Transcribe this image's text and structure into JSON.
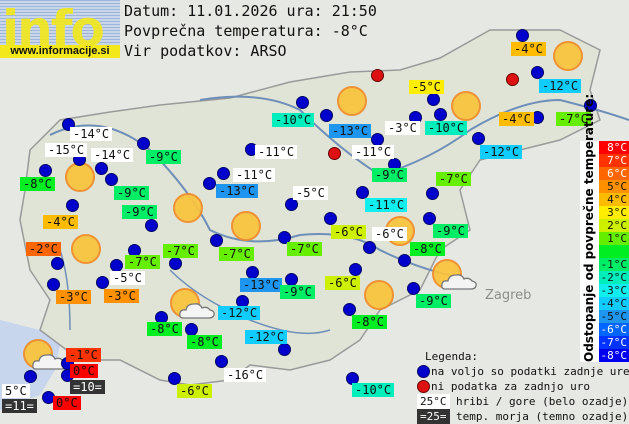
{
  "logo": {
    "word": "info",
    "url": "www.informacije.si"
  },
  "header": {
    "date_line": "Datum: 11.01.2026 ura: 21:50",
    "avg_line": "Povprečna temperatura: -8°C",
    "source_line": "Vir podatkov: ARSO"
  },
  "place_names": {
    "zagreb": "Zagreb"
  },
  "stations": [
    {
      "t": "-14°C",
      "bg": "#ffffff"
    },
    {
      "t": "-15°C",
      "bg": "#ffffff"
    },
    {
      "t": "-14°C",
      "bg": "#ffffff"
    },
    {
      "t": "-8°C",
      "bg": "#00ee22"
    },
    {
      "t": "-9°C",
      "bg": "#00ee66"
    },
    {
      "t": "-9°C",
      "bg": "#00ee66"
    },
    {
      "t": "-9°C",
      "bg": "#00ee66"
    },
    {
      "t": "-4°C",
      "bg": "#ffbb00"
    },
    {
      "t": "-2°C",
      "bg": "#ff6600"
    },
    {
      "t": "-10°C",
      "bg": "#00eebb"
    },
    {
      "t": "-13°C",
      "bg": "#1e96f0"
    },
    {
      "t": "-3°C",
      "bg": "#ffffff"
    },
    {
      "t": "-10°C",
      "bg": "#00eebb"
    },
    {
      "t": "-11°C",
      "bg": "#ffffff"
    },
    {
      "t": "-11°C",
      "bg": "#ffffff"
    },
    {
      "t": "-5°C",
      "bg": "#ffee00"
    },
    {
      "t": "-4°C",
      "bg": "#ffbb00"
    },
    {
      "t": "-12°C",
      "bg": "#11ccff"
    },
    {
      "t": "-4°C",
      "bg": "#ffbb00"
    },
    {
      "t": "-7°C",
      "bg": "#66ee00"
    },
    {
      "t": "-12°C",
      "bg": "#11ccff"
    },
    {
      "t": "-11°C",
      "bg": "#ffffff"
    },
    {
      "t": "-13°C",
      "bg": "#1e96f0"
    },
    {
      "t": "-5°C",
      "bg": "#ffffff"
    },
    {
      "t": "-9°C",
      "bg": "#00ee66"
    },
    {
      "t": "-7°C",
      "bg": "#66ee00"
    },
    {
      "t": "-11°C",
      "bg": "#11eeee"
    },
    {
      "t": "-6°C",
      "bg": "#ccf000"
    },
    {
      "t": "-6°C",
      "bg": "#ffffff"
    },
    {
      "t": "-9°C",
      "bg": "#00ee66"
    },
    {
      "t": "-8°C",
      "bg": "#00ee22"
    },
    {
      "t": "-7°C",
      "bg": "#66ee00"
    },
    {
      "t": "-7°C",
      "bg": "#66ee00"
    },
    {
      "t": "-7°C",
      "bg": "#66ee00"
    },
    {
      "t": "-7°C",
      "bg": "#66ee00"
    },
    {
      "t": "-5°C",
      "bg": "#ffffff"
    },
    {
      "t": "-3°C",
      "bg": "#ff9100"
    },
    {
      "t": "-3°C",
      "bg": "#ff9100"
    },
    {
      "t": "-13°C",
      "bg": "#1e96f0"
    },
    {
      "t": "-9°C",
      "bg": "#00ee66"
    },
    {
      "t": "-6°C",
      "bg": "#ccf000"
    },
    {
      "t": "-9°C",
      "bg": "#00ee66"
    },
    {
      "t": "-12°C",
      "bg": "#11ccff"
    },
    {
      "t": "-8°C",
      "bg": "#00ee22"
    },
    {
      "t": "-8°C",
      "bg": "#00ee22"
    },
    {
      "t": "-12°C",
      "bg": "#11ccff"
    },
    {
      "t": "-8°C",
      "bg": "#00ee22"
    },
    {
      "t": "-1°C",
      "bg": "#ff3300"
    },
    {
      "t": "0°C",
      "bg": "#ff0000"
    },
    {
      "t": "=10=",
      "bg": "#333333"
    },
    {
      "t": "5°C",
      "bg": "#ffffff"
    },
    {
      "t": "=11=",
      "bg": "#333333"
    },
    {
      "t": "0°C",
      "bg": "#ff0000"
    },
    {
      "t": "-16°C",
      "bg": "#ffffff"
    },
    {
      "t": "-6°C",
      "bg": "#ccf000"
    },
    {
      "t": "-10°C",
      "bg": "#00eebb"
    }
  ],
  "scale": {
    "title": "Odstopanje od povprečne temperature:",
    "steps": [
      {
        "label": "8°C",
        "color": "#ff0000",
        "text": "#ffffff"
      },
      {
        "label": "7°C",
        "color": "#ff3300",
        "text": "#ffffff"
      },
      {
        "label": "6°C",
        "color": "#ff6600",
        "text": "#ffffff"
      },
      {
        "label": "5°C",
        "color": "#ff9100",
        "text": "#111111"
      },
      {
        "label": "4°C",
        "color": "#ffbb00",
        "text": "#111111"
      },
      {
        "label": "3°C",
        "color": "#ffee00",
        "text": "#111111"
      },
      {
        "label": "2°C",
        "color": "#ccf000",
        "text": "#111111"
      },
      {
        "label": "1°C",
        "color": "#66ee00",
        "text": "#111111"
      },
      {
        "label": "",
        "color": "#00ee22",
        "text": "#111111"
      },
      {
        "label": "-1°C",
        "color": "#00ee66",
        "text": "#111111"
      },
      {
        "label": "-2°C",
        "color": "#00eebb",
        "text": "#111111"
      },
      {
        "label": "-3°C",
        "color": "#11eeee",
        "text": "#111111"
      },
      {
        "label": "-4°C",
        "color": "#11ccff",
        "text": "#111111"
      },
      {
        "label": "-5°C",
        "color": "#1e96f0",
        "text": "#111111"
      },
      {
        "label": "-6°C",
        "color": "#0066ff",
        "text": "#ffffff"
      },
      {
        "label": "-7°C",
        "color": "#0033ff",
        "text": "#ffffff"
      },
      {
        "label": "-8°C",
        "color": "#0000ee",
        "text": "#ffffff"
      }
    ]
  },
  "legend": {
    "title": "Legenda:",
    "blue_dot": "na voljo so podatki zadnje ure",
    "red_dot": "ni podatka za zadnjo uro",
    "mountain_sample": "25°C",
    "mountain_text": "hribi / gore (belo ozadje)",
    "sea_sample": "=25=",
    "sea_text": "temp. morja (temno ozadje)"
  },
  "colors": {
    "station_ok": "#0000cc",
    "station_missing": "#dd1111",
    "sun": "#fbc43a"
  }
}
